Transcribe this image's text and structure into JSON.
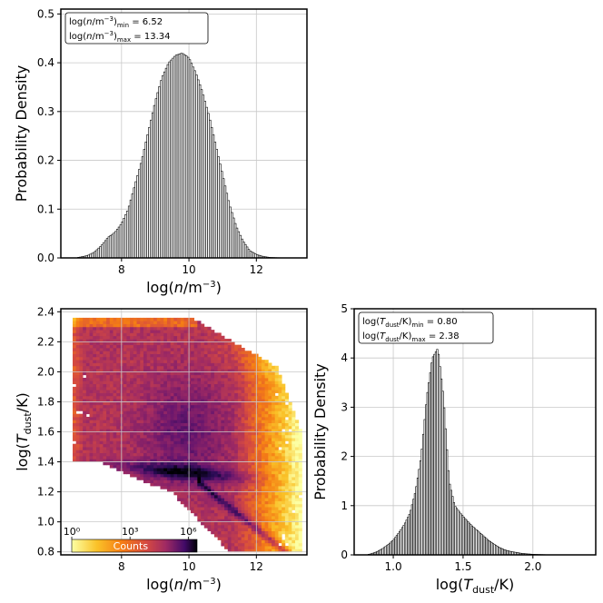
{
  "colors": {
    "bar_fill": "#ffffff",
    "bar_edge": "#000000",
    "grid": "#c8c8c8",
    "colormap": "inferno"
  },
  "chart_data": [
    {
      "type": "bar",
      "panel": "top-left",
      "xlabel": "log(n/m⁻³)",
      "ylabel": "Probability Density",
      "xlim": [
        6.2,
        13.5
      ],
      "ylim": [
        0.0,
        0.51
      ],
      "xticks": [
        "8",
        "10",
        "12"
      ],
      "yticks": [
        "0.0",
        "0.1",
        "0.2",
        "0.3",
        "0.4",
        "0.5"
      ],
      "grid": true,
      "annotation": [
        "log(n/m⁻³)min = 6.52",
        "log(n/m⁻³)max = 13.34"
      ],
      "annotation_location": "top-left",
      "x": [
        6.8,
        7.0,
        7.2,
        7.4,
        7.6,
        7.8,
        8.0,
        8.2,
        8.4,
        8.6,
        8.8,
        9.0,
        9.2,
        9.4,
        9.6,
        9.8,
        10.0,
        10.2,
        10.4,
        10.6,
        10.8,
        11.0,
        11.2,
        11.4,
        11.6,
        11.8,
        12.0,
        12.2,
        12.4,
        12.6,
        12.8,
        13.0
      ],
      "values": [
        0.002,
        0.005,
        0.012,
        0.025,
        0.042,
        0.052,
        0.07,
        0.1,
        0.15,
        0.2,
        0.26,
        0.32,
        0.37,
        0.4,
        0.415,
        0.42,
        0.41,
        0.38,
        0.34,
        0.29,
        0.23,
        0.17,
        0.11,
        0.065,
        0.035,
        0.015,
        0.007,
        0.003,
        0.001,
        0.0005,
        0.0002,
        0.0001
      ]
    },
    {
      "type": "heatmap",
      "panel": "bottom-left",
      "xlabel": "log(n/m⁻³)",
      "ylabel": "log(Tdust/K)",
      "xlim": [
        6.2,
        13.5
      ],
      "ylim": [
        0.78,
        2.42
      ],
      "xticks": [
        "8",
        "10",
        "12"
      ],
      "yticks": [
        "0.8",
        "1.0",
        "1.2",
        "1.4",
        "1.6",
        "1.8",
        "2.0",
        "2.2",
        "2.4"
      ],
      "colorbar_label": "Counts",
      "colorbar_ticks": [
        "10⁰",
        "10³",
        "10⁶"
      ],
      "colorbar_scale": "log",
      "colormap": "inferno",
      "grid": true
    },
    {
      "type": "bar",
      "panel": "bottom-right",
      "xlabel": "log(Tdust/K)",
      "ylabel": "Probability Density",
      "xlim": [
        0.72,
        2.45
      ],
      "ylim": [
        0.0,
        5.0
      ],
      "xticks": [
        "1.0",
        "1.5",
        "2.0"
      ],
      "yticks": [
        "0",
        "1",
        "2",
        "3",
        "4",
        "5"
      ],
      "grid": true,
      "annotation": [
        "log(Tdust/K)min = 0.80",
        "log(Tdust/K)max = 2.38"
      ],
      "annotation_location": "top-left",
      "x": [
        0.84,
        0.88,
        0.92,
        0.96,
        1.0,
        1.04,
        1.08,
        1.12,
        1.16,
        1.2,
        1.24,
        1.28,
        1.32,
        1.36,
        1.4,
        1.44,
        1.48,
        1.52,
        1.56,
        1.6,
        1.64,
        1.68,
        1.72,
        1.76,
        1.8,
        1.84,
        1.88,
        1.92,
        1.96,
        2.0,
        2.04,
        2.08
      ],
      "values": [
        0.02,
        0.06,
        0.12,
        0.2,
        0.3,
        0.45,
        0.62,
        0.85,
        1.3,
        2.0,
        3.2,
        4.0,
        4.2,
        3.2,
        1.5,
        1.0,
        0.85,
        0.72,
        0.6,
        0.5,
        0.4,
        0.3,
        0.22,
        0.15,
        0.1,
        0.07,
        0.05,
        0.03,
        0.02,
        0.012,
        0.008,
        0.005
      ]
    }
  ]
}
